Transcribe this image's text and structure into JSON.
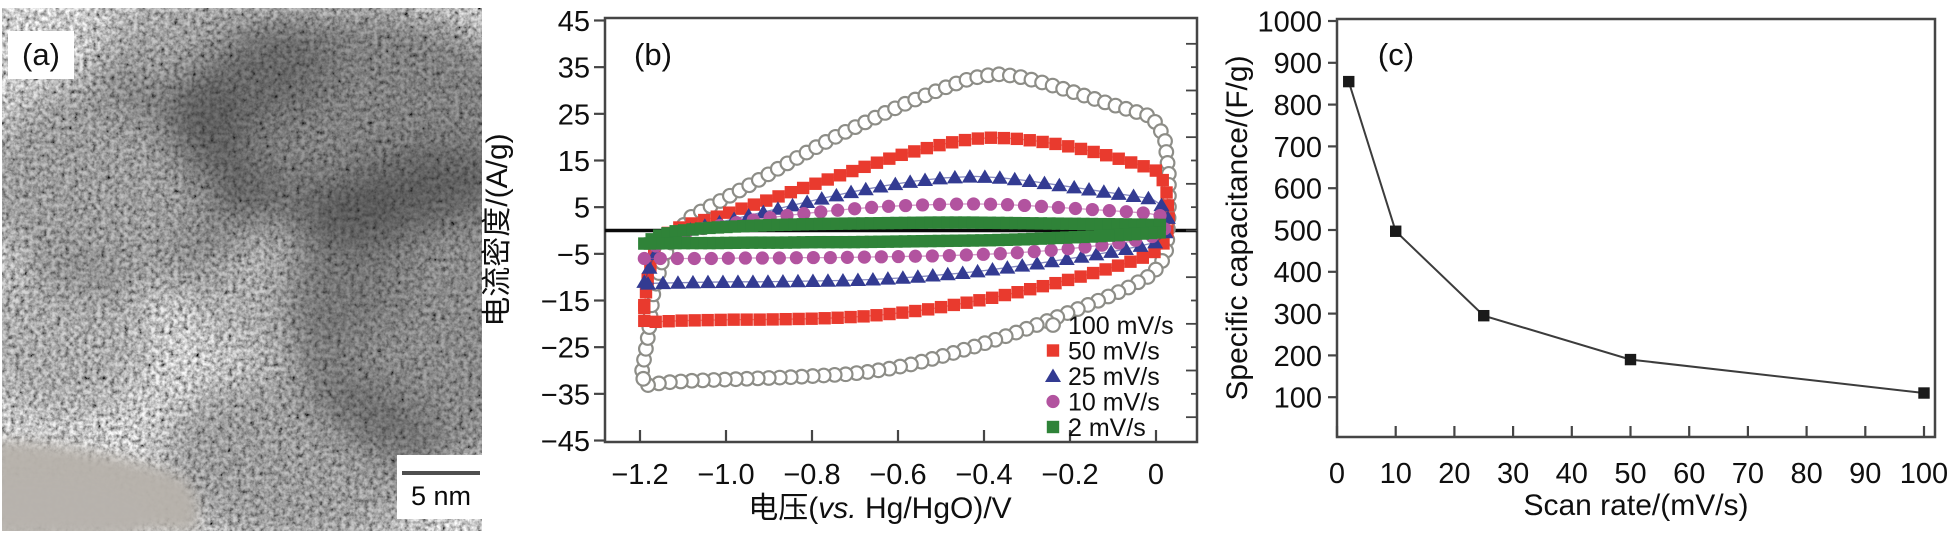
{
  "panels": {
    "a": {
      "label": "(a)",
      "scale_bar_text": "5 nm"
    },
    "b": {
      "label": "(b)"
    },
    "c": {
      "label": "(c)"
    }
  },
  "chart_data": [
    {
      "type": "scatter",
      "panel": "(b)",
      "title": "",
      "xlabel": "电压(vs. Hg/HgO)/V",
      "xlabel_parts": {
        "prefix": "电压(",
        "italic": "vs.",
        "suffix": " Hg/HgO)/V"
      },
      "ylabel": "电流密度/(A/g)",
      "xlim": [
        -1.28,
        0.095
      ],
      "ylim": [
        -45.4,
        45.4
      ],
      "x_ticks": [
        -1.2,
        -1.0,
        -0.8,
        -0.6,
        -0.4,
        -0.2,
        0
      ],
      "x_tick_labels": [
        "−1.2",
        "−1.0",
        "−0.8",
        "−0.6",
        "−0.4",
        "−0.2",
        "0"
      ],
      "y_ticks": [
        45,
        35,
        25,
        15,
        5,
        -5,
        -15,
        -25,
        -35,
        -45
      ],
      "y_tick_labels": [
        "45",
        "35",
        "25",
        "15",
        "5",
        "−5",
        "−15",
        "−25",
        "−35",
        "−45"
      ],
      "grid": false,
      "legend_position": "lower right",
      "zero_line": 0,
      "series": [
        {
          "name": "100 mV/s",
          "marker": "open-circle",
          "color": "#8d8d87",
          "loop": [
            [
              -1.195,
              -30
            ],
            [
              -1.18,
              -22
            ],
            [
              -1.17,
              -14
            ],
            [
              -1.15,
              -7
            ],
            [
              -1.12,
              -1
            ],
            [
              -1.08,
              3
            ],
            [
              -1.03,
              5.5
            ],
            [
              -0.98,
              8
            ],
            [
              -0.93,
              10.5
            ],
            [
              -0.88,
              13.2
            ],
            [
              -0.83,
              15.8
            ],
            [
              -0.78,
              18.4
            ],
            [
              -0.73,
              20.8
            ],
            [
              -0.68,
              23
            ],
            [
              -0.63,
              25.2
            ],
            [
              -0.58,
              27.3
            ],
            [
              -0.53,
              29.2
            ],
            [
              -0.48,
              31
            ],
            [
              -0.44,
              32.3
            ],
            [
              -0.4,
              33.2
            ],
            [
              -0.36,
              33.5
            ],
            [
              -0.31,
              32.8
            ],
            [
              -0.26,
              31.6
            ],
            [
              -0.21,
              30.2
            ],
            [
              -0.16,
              28.7
            ],
            [
              -0.11,
              27.2
            ],
            [
              -0.06,
              25.8
            ],
            [
              -0.01,
              24.4
            ],
            [
              0.02,
              20
            ],
            [
              0.03,
              12
            ],
            [
              0.03,
              4
            ],
            [
              0.025,
              -4
            ],
            [
              0.01,
              -7.5
            ],
            [
              -0.02,
              -10
            ],
            [
              -0.07,
              -12.5
            ],
            [
              -0.12,
              -14.5
            ],
            [
              -0.17,
              -16.4
            ],
            [
              -0.22,
              -18.2
            ],
            [
              -0.27,
              -20
            ],
            [
              -0.32,
              -21.7
            ],
            [
              -0.37,
              -23.3
            ],
            [
              -0.42,
              -24.8
            ],
            [
              -0.47,
              -26.2
            ],
            [
              -0.52,
              -27.5
            ],
            [
              -0.57,
              -28.7
            ],
            [
              -0.62,
              -29.6
            ],
            [
              -0.67,
              -30.3
            ],
            [
              -0.72,
              -30.8
            ],
            [
              -0.78,
              -31.1
            ],
            [
              -0.84,
              -31.4
            ],
            [
              -0.9,
              -31.6
            ],
            [
              -0.96,
              -31.8
            ],
            [
              -1.02,
              -32
            ],
            [
              -1.08,
              -32.2
            ],
            [
              -1.13,
              -32.5
            ],
            [
              -1.17,
              -32.9
            ],
            [
              -1.19,
              -33.3
            ]
          ]
        },
        {
          "name": "50 mV/s",
          "marker": "square",
          "color": "#e93a2e",
          "loop": [
            [
              -1.19,
              -16
            ],
            [
              -1.18,
              -9
            ],
            [
              -1.16,
              -3
            ],
            [
              -1.13,
              0
            ],
            [
              -1.08,
              1.5
            ],
            [
              -1.02,
              3
            ],
            [
              -0.96,
              4.8
            ],
            [
              -0.9,
              6.6
            ],
            [
              -0.84,
              8.5
            ],
            [
              -0.78,
              10.4
            ],
            [
              -0.72,
              12.3
            ],
            [
              -0.66,
              14.2
            ],
            [
              -0.6,
              16
            ],
            [
              -0.54,
              17.5
            ],
            [
              -0.48,
              18.8
            ],
            [
              -0.43,
              19.6
            ],
            [
              -0.38,
              19.9
            ],
            [
              -0.33,
              19.7
            ],
            [
              -0.28,
              19.2
            ],
            [
              -0.23,
              18.5
            ],
            [
              -0.18,
              17.6
            ],
            [
              -0.13,
              16.5
            ],
            [
              -0.08,
              15.2
            ],
            [
              -0.03,
              13.8
            ],
            [
              0.01,
              12.5
            ],
            [
              0.025,
              8
            ],
            [
              0.03,
              3
            ],
            [
              0.025,
              -1.5
            ],
            [
              0.01,
              -4
            ],
            [
              -0.03,
              -5.8
            ],
            [
              -0.08,
              -7.3
            ],
            [
              -0.13,
              -8.7
            ],
            [
              -0.18,
              -10
            ],
            [
              -0.23,
              -11.2
            ],
            [
              -0.28,
              -12.3
            ],
            [
              -0.33,
              -13.4
            ],
            [
              -0.38,
              -14.4
            ],
            [
              -0.43,
              -15.3
            ],
            [
              -0.48,
              -16.1
            ],
            [
              -0.53,
              -16.9
            ],
            [
              -0.58,
              -17.5
            ],
            [
              -0.63,
              -18
            ],
            [
              -0.68,
              -18.4
            ],
            [
              -0.74,
              -18.7
            ],
            [
              -0.8,
              -18.9
            ],
            [
              -0.86,
              -19
            ],
            [
              -0.92,
              -19.1
            ],
            [
              -0.98,
              -19.1
            ],
            [
              -1.04,
              -19.2
            ],
            [
              -1.1,
              -19.3
            ],
            [
              -1.15,
              -19.5
            ],
            [
              -1.19,
              -19.7
            ]
          ]
        },
        {
          "name": "25 mV/s",
          "marker": "triangle",
          "color": "#333b92",
          "loop": [
            [
              -1.19,
              -11
            ],
            [
              -1.17,
              -6
            ],
            [
              -1.15,
              -2.5
            ],
            [
              -1.11,
              -0.5
            ],
            [
              -1.05,
              1
            ],
            [
              -0.98,
              2.5
            ],
            [
              -0.91,
              4
            ],
            [
              -0.84,
              5.5
            ],
            [
              -0.77,
              7
            ],
            [
              -0.7,
              8.4
            ],
            [
              -0.63,
              9.6
            ],
            [
              -0.56,
              10.6
            ],
            [
              -0.49,
              11.3
            ],
            [
              -0.42,
              11.6
            ],
            [
              -0.36,
              11.3
            ],
            [
              -0.3,
              10.7
            ],
            [
              -0.24,
              9.9
            ],
            [
              -0.18,
              9.1
            ],
            [
              -0.12,
              8.3
            ],
            [
              -0.06,
              7.5
            ],
            [
              -0.01,
              6.8
            ],
            [
              0.02,
              5
            ],
            [
              0.03,
              2
            ],
            [
              0.02,
              -1
            ],
            [
              0.0,
              -2.5
            ],
            [
              -0.05,
              -3.6
            ],
            [
              -0.1,
              -4.5
            ],
            [
              -0.15,
              -5.3
            ],
            [
              -0.2,
              -6
            ],
            [
              -0.25,
              -6.7
            ],
            [
              -0.3,
              -7.4
            ],
            [
              -0.35,
              -8
            ],
            [
              -0.4,
              -8.6
            ],
            [
              -0.45,
              -9.1
            ],
            [
              -0.5,
              -9.5
            ],
            [
              -0.55,
              -9.9
            ],
            [
              -0.6,
              -10.2
            ],
            [
              -0.66,
              -10.5
            ],
            [
              -0.72,
              -10.7
            ],
            [
              -0.78,
              -10.8
            ],
            [
              -0.85,
              -10.9
            ],
            [
              -0.92,
              -11
            ],
            [
              -0.99,
              -11
            ],
            [
              -1.06,
              -11.1
            ],
            [
              -1.12,
              -11.2
            ],
            [
              -1.16,
              -11.3
            ],
            [
              -1.19,
              -11.4
            ]
          ]
        },
        {
          "name": "10 mV/s",
          "marker": "circle",
          "color": "#b2539f",
          "loop": [
            [
              -1.19,
              -6
            ],
            [
              -1.16,
              -3
            ],
            [
              -1.12,
              -1
            ],
            [
              -1.06,
              0.3
            ],
            [
              -0.99,
              1.5
            ],
            [
              -0.92,
              2.5
            ],
            [
              -0.85,
              3.3
            ],
            [
              -0.78,
              4
            ],
            [
              -0.71,
              4.6
            ],
            [
              -0.64,
              5.1
            ],
            [
              -0.57,
              5.4
            ],
            [
              -0.5,
              5.6
            ],
            [
              -0.43,
              5.7
            ],
            [
              -0.36,
              5.6
            ],
            [
              -0.29,
              5.3
            ],
            [
              -0.22,
              4.9
            ],
            [
              -0.15,
              4.5
            ],
            [
              -0.08,
              4.1
            ],
            [
              -0.02,
              3.7
            ],
            [
              0.02,
              3
            ],
            [
              0.02,
              -0.5
            ],
            [
              -0.02,
              -1.6
            ],
            [
              -0.07,
              -2.5
            ],
            [
              -0.13,
              -3.2
            ],
            [
              -0.19,
              -3.8
            ],
            [
              -0.25,
              -4.3
            ],
            [
              -0.31,
              -4.7
            ],
            [
              -0.37,
              -5
            ],
            [
              -0.43,
              -5.2
            ],
            [
              -0.49,
              -5.4
            ],
            [
              -0.55,
              -5.5
            ],
            [
              -0.61,
              -5.6
            ],
            [
              -0.68,
              -5.7
            ],
            [
              -0.75,
              -5.8
            ],
            [
              -0.82,
              -5.8
            ],
            [
              -0.89,
              -5.9
            ],
            [
              -0.96,
              -5.9
            ],
            [
              -1.03,
              -6
            ],
            [
              -1.09,
              -6
            ],
            [
              -1.14,
              -6
            ],
            [
              -1.19,
              -6
            ]
          ]
        },
        {
          "name": "2 mV/s",
          "marker": "square",
          "color": "#2f8338",
          "loop": [
            [
              -1.19,
              -2.8
            ],
            [
              -1.16,
              -1.2
            ],
            [
              -1.12,
              -0.2
            ],
            [
              -1.05,
              0.5
            ],
            [
              -0.97,
              0.9
            ],
            [
              -0.88,
              1.2
            ],
            [
              -0.79,
              1.4
            ],
            [
              -0.7,
              1.5
            ],
            [
              -0.61,
              1.6
            ],
            [
              -0.52,
              1.7
            ],
            [
              -0.43,
              1.7
            ],
            [
              -0.34,
              1.6
            ],
            [
              -0.25,
              1.5
            ],
            [
              -0.16,
              1.4
            ],
            [
              -0.07,
              1.3
            ],
            [
              0.01,
              1.2
            ],
            [
              0.01,
              -0.4
            ],
            [
              -0.07,
              -0.9
            ],
            [
              -0.15,
              -1.3
            ],
            [
              -0.23,
              -1.6
            ],
            [
              -0.31,
              -1.9
            ],
            [
              -0.39,
              -2.1
            ],
            [
              -0.47,
              -2.2
            ],
            [
              -0.55,
              -2.3
            ],
            [
              -0.63,
              -2.4
            ],
            [
              -0.71,
              -2.5
            ],
            [
              -0.79,
              -2.5
            ],
            [
              -0.87,
              -2.6
            ],
            [
              -0.95,
              -2.6
            ],
            [
              -1.03,
              -2.7
            ],
            [
              -1.11,
              -2.7
            ],
            [
              -1.19,
              -2.8
            ]
          ]
        }
      ]
    },
    {
      "type": "line",
      "panel": "(c)",
      "title": "",
      "xlabel": "Scan rate/(mV/s)",
      "ylabel": "Specific capacitance/(F/g)",
      "x": [
        2,
        10,
        25,
        50,
        100
      ],
      "values": [
        855,
        497,
        295,
        190,
        110
      ],
      "xlim": [
        0,
        101.8
      ],
      "ylim": [
        0,
        1000
      ],
      "x_ticks": [
        0,
        10,
        20,
        30,
        40,
        50,
        60,
        70,
        80,
        90,
        100
      ],
      "y_ticks": [
        1000,
        900,
        800,
        700,
        600,
        500,
        400,
        300,
        200,
        100
      ],
      "grid": false,
      "marker": "square",
      "color": "#1a1a1a",
      "line_color": "#3c3c3c"
    }
  ]
}
